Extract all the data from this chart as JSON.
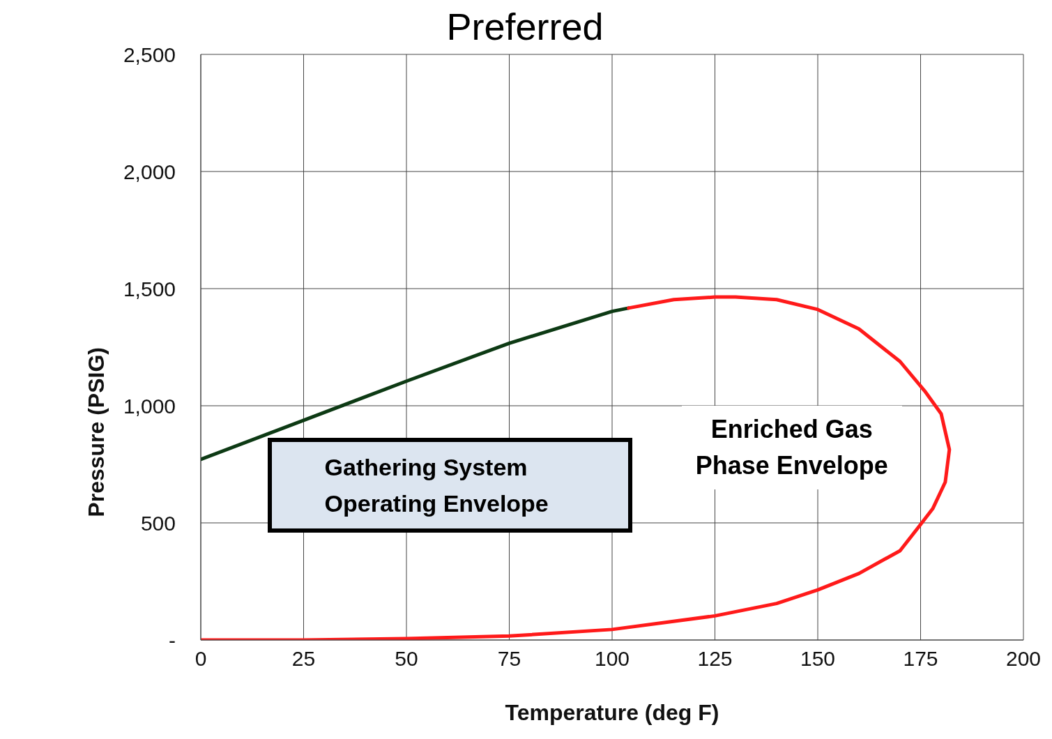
{
  "chart_data": {
    "type": "line",
    "title": "Preferred",
    "xlabel": "Temperature (deg F)",
    "ylabel": "Pressure (PSIG)",
    "annotations": [
      "Gathering System Operating Envelope",
      "Enriched Gas Phase Envelope"
    ],
    "series": [
      {
        "color": "#0d3a14",
        "x": [
          0,
          25,
          50,
          75,
          100,
          104
        ],
        "values": [
          771,
          938,
          1105,
          1267,
          1403,
          1417
        ]
      },
      {
        "color": "#ff1a1a",
        "x": [
          104,
          115,
          125,
          130,
          140,
          150,
          160,
          170,
          176,
          180,
          182,
          181,
          178,
          175,
          170,
          160,
          150,
          140,
          125,
          100,
          75,
          50,
          25,
          0
        ],
        "values": [
          1417,
          1453,
          1464,
          1464,
          1453,
          1411,
          1328,
          1189,
          1063,
          966,
          813,
          674,
          562,
          493,
          381,
          284,
          214,
          156,
          103,
          45,
          17,
          6,
          0,
          0
        ]
      }
    ],
    "xlim": [
      0,
      200
    ],
    "xticks": [
      0,
      25,
      50,
      75,
      100,
      125,
      150,
      175,
      200
    ],
    "ylim": [
      0,
      2500
    ],
    "yticks": [
      {
        "value": 0,
        "label": "-"
      },
      {
        "value": 500,
        "label": "500"
      },
      {
        "value": 1000,
        "label": "1,000"
      },
      {
        "value": 1500,
        "label": "1,500"
      },
      {
        "value": 2000,
        "label": "2,000"
      },
      {
        "value": 2500,
        "label": "2,500"
      }
    ],
    "grid": true,
    "legend": false,
    "marker": "none",
    "line_style": "solid"
  }
}
